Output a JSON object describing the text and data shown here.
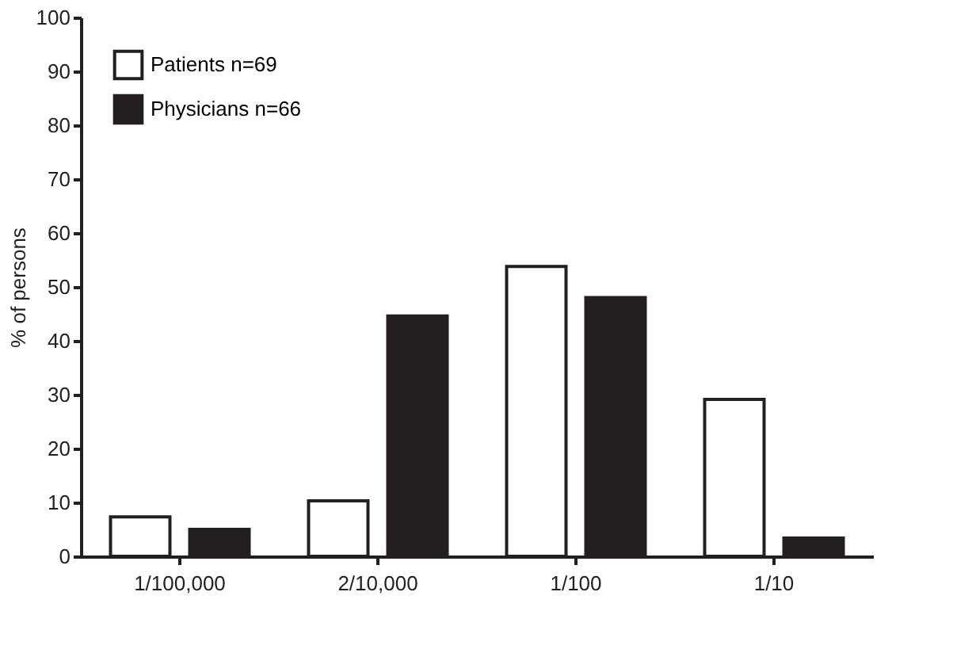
{
  "chart_data": {
    "type": "bar",
    "ylabel": "% of persons",
    "categories": [
      "1/100,000",
      "2/10,000",
      "1/100",
      "1/10"
    ],
    "series": [
      {
        "name": "Patients n=69",
        "color": "#ffffff",
        "values": [
          7.3,
          10.3,
          53.8,
          29.1
        ]
      },
      {
        "name": "Physicians n=66",
        "color": "#231f20",
        "values": [
          5.0,
          44.6,
          48.0,
          3.4
        ]
      }
    ],
    "ylim": [
      0,
      100
    ],
    "yticks": [
      0,
      10,
      20,
      30,
      40,
      50,
      60,
      70,
      80,
      90,
      100
    ],
    "grid": false,
    "legend": "top left"
  }
}
